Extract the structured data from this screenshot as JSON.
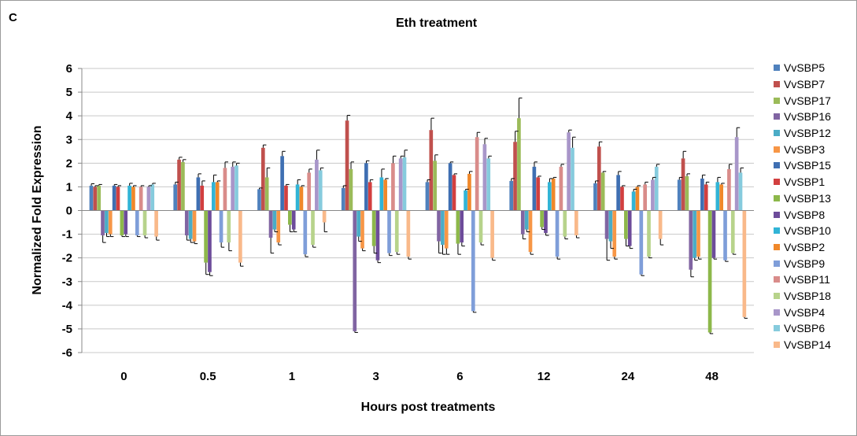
{
  "panel_label": "C",
  "chart_data": {
    "type": "bar",
    "title": "Eth treatment",
    "xlabel": "Hours post treatments",
    "ylabel": "Normalized Fold Expression",
    "ylim": [
      -6,
      6
    ],
    "yticks": [
      -6,
      -5,
      -4,
      -3,
      -2,
      -1,
      0,
      1,
      2,
      3,
      4,
      5,
      6
    ],
    "grid": true,
    "legend_position": "right",
    "error_bars": true,
    "categories": [
      "0",
      "0.5",
      "1",
      "3",
      "6",
      "12",
      "24",
      "48"
    ],
    "series": [
      {
        "name": "VvSBP5",
        "color": "#4F81BD",
        "values": [
          1.05,
          1.1,
          0.9,
          0.95,
          1.2,
          1.25,
          1.15,
          1.3
        ],
        "errors": [
          0.08,
          0.1,
          0.05,
          0.1,
          0.1,
          0.1,
          0.1,
          0.1
        ]
      },
      {
        "name": "VvSBP7",
        "color": "#C0504D",
        "values": [
          1.0,
          2.15,
          2.65,
          3.8,
          3.4,
          2.9,
          2.7,
          2.2
        ],
        "errors": [
          0.05,
          0.1,
          0.12,
          0.22,
          0.5,
          0.45,
          0.2,
          0.3
        ]
      },
      {
        "name": "VvSBP17",
        "color": "#9BBB59",
        "values": [
          1.05,
          2.05,
          1.4,
          1.75,
          2.1,
          3.9,
          1.6,
          1.45
        ],
        "errors": [
          0.05,
          0.1,
          0.4,
          0.3,
          0.25,
          0.85,
          0.05,
          0.1
        ]
      },
      {
        "name": "VvSBP16",
        "color": "#8064A2",
        "values": [
          -1.05,
          -1.05,
          -1.15,
          -5.1,
          -1.3,
          -1.0,
          -1.2,
          -2.5
        ],
        "errors": [
          0.3,
          0.2,
          0.65,
          0.05,
          0.5,
          0.2,
          0.9,
          0.3
        ]
      },
      {
        "name": "VvSBP12",
        "color": "#4BACC6",
        "values": [
          -0.95,
          -1.2,
          -0.8,
          -1.1,
          -1.45,
          -0.8,
          -1.3,
          -2.0
        ],
        "errors": [
          0.15,
          0.15,
          0.1,
          0.2,
          0.4,
          0.1,
          0.3,
          0.1
        ]
      },
      {
        "name": "VvSBP3",
        "color": "#F79646",
        "values": [
          -1.0,
          -1.3,
          -1.35,
          -1.6,
          -1.6,
          -1.75,
          -1.95,
          -1.95
        ],
        "errors": [
          0.1,
          0.1,
          0.1,
          0.1,
          0.25,
          0.1,
          0.1,
          0.1
        ]
      },
      {
        "name": "VvSBP15",
        "color": "#3F6FB2",
        "values": [
          1.05,
          1.4,
          2.3,
          2.0,
          2.0,
          1.85,
          1.5,
          1.35
        ],
        "errors": [
          0.05,
          0.15,
          0.2,
          0.1,
          0.05,
          0.2,
          0.15,
          0.15
        ]
      },
      {
        "name": "VvSBP1",
        "color": "#D23F3F",
        "values": [
          1.0,
          1.05,
          1.05,
          1.2,
          1.5,
          1.4,
          1.0,
          1.1
        ],
        "errors": [
          0.05,
          0.2,
          0.05,
          0.1,
          0.05,
          0.05,
          0.05,
          0.1
        ]
      },
      {
        "name": "VvSBP13",
        "color": "#8DB84A",
        "values": [
          -1.05,
          -2.2,
          -0.6,
          -1.5,
          -1.4,
          -0.7,
          -1.2,
          -5.15
        ],
        "errors": [
          0.05,
          0.5,
          0.3,
          0.3,
          0.45,
          0.1,
          0.3,
          0.05
        ]
      },
      {
        "name": "VvSBP8",
        "color": "#6D4C9A",
        "values": [
          -1.0,
          -2.6,
          -0.8,
          -2.1,
          -1.35,
          -0.95,
          -1.5,
          -2.0
        ],
        "errors": [
          0.1,
          0.15,
          0.1,
          0.1,
          0.15,
          0.1,
          0.1,
          0.05
        ]
      },
      {
        "name": "VvSBP10",
        "color": "#31B4D6",
        "values": [
          1.05,
          1.2,
          1.1,
          1.4,
          0.85,
          1.2,
          0.8,
          1.2
        ],
        "errors": [
          0.1,
          0.3,
          0.2,
          0.35,
          0.05,
          0.15,
          0.1,
          0.2
        ]
      },
      {
        "name": "VvSBP2",
        "color": "#F0882A",
        "values": [
          1.0,
          1.2,
          1.0,
          1.3,
          1.55,
          1.35,
          1.0,
          1.1
        ],
        "errors": [
          0.05,
          0.05,
          0.05,
          0.05,
          0.1,
          0.05,
          0.05,
          0.05
        ]
      },
      {
        "name": "VvSBP9",
        "color": "#7F9ED9",
        "values": [
          -1.05,
          -1.35,
          -1.85,
          -1.8,
          -4.25,
          -1.95,
          -2.7,
          -2.1
        ],
        "errors": [
          0.05,
          0.2,
          0.1,
          0.1,
          0.05,
          0.1,
          0.05,
          0.05
        ]
      },
      {
        "name": "VvSBP11",
        "color": "#D98C8A",
        "values": [
          1.0,
          1.8,
          1.6,
          2.0,
          3.1,
          1.85,
          1.1,
          1.75
        ],
        "errors": [
          0.05,
          0.25,
          0.15,
          0.3,
          0.2,
          0.1,
          0.1,
          0.2
        ]
      },
      {
        "name": "VvSBP18",
        "color": "#B7D38B",
        "values": [
          -1.05,
          -1.35,
          -1.45,
          -1.75,
          -1.35,
          -1.1,
          -1.95,
          -1.8
        ],
        "errors": [
          0.1,
          0.35,
          0.1,
          0.1,
          0.1,
          0.1,
          0.05,
          0.05
        ]
      },
      {
        "name": "VvSBP4",
        "color": "#A896C9",
        "values": [
          1.0,
          1.85,
          2.15,
          2.2,
          2.8,
          3.3,
          1.3,
          3.1
        ],
        "errors": [
          0.05,
          0.2,
          0.4,
          0.1,
          0.25,
          0.1,
          0.1,
          0.4
        ]
      },
      {
        "name": "VvSBP6",
        "color": "#86CBDD",
        "values": [
          1.1,
          1.9,
          1.7,
          2.25,
          2.2,
          2.65,
          1.85,
          1.6
        ],
        "errors": [
          0.05,
          0.1,
          0.1,
          0.3,
          0.1,
          0.45,
          0.1,
          0.2
        ]
      },
      {
        "name": "VvSBP14",
        "color": "#F9B98A",
        "values": [
          -1.1,
          -2.2,
          -0.5,
          -1.95,
          -2.0,
          -1.05,
          -1.2,
          -4.5
        ],
        "errors": [
          0.15,
          0.15,
          0.4,
          0.1,
          0.1,
          0.1,
          0.25,
          0.05
        ]
      }
    ]
  }
}
